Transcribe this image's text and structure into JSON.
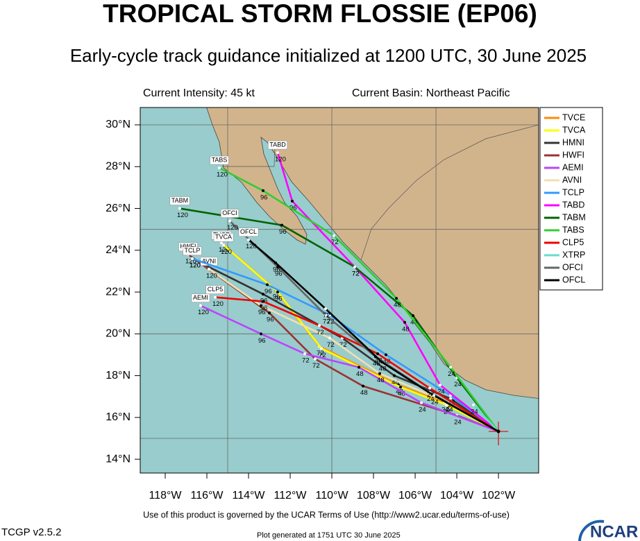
{
  "header": {
    "title": "TROPICAL STORM FLOSSIE (EP06)",
    "subtitle": "Early-cycle track guidance initialized at 1200 UTC, 30 June 2025",
    "intensity": "Current Intensity: 45 kt",
    "basin": "Current Basin: Northeast Pacific"
  },
  "chart_data": {
    "type": "track-map",
    "xlim": [
      -119.2,
      -100.07
    ],
    "ylim": [
      13.34,
      30.83
    ],
    "xticks": [
      {
        "value": -118,
        "label": "118°W"
      },
      {
        "value": -116,
        "label": "116°W"
      },
      {
        "value": -114,
        "label": "114°W"
      },
      {
        "value": -112,
        "label": "112°W"
      },
      {
        "value": -110,
        "label": "110°W"
      },
      {
        "value": -108,
        "label": "108°W"
      },
      {
        "value": -106,
        "label": "106°W"
      },
      {
        "value": -104,
        "label": "104°W"
      },
      {
        "value": -102,
        "label": "102°W"
      }
    ],
    "yticks": [
      {
        "value": 14,
        "label": "14°N"
      },
      {
        "value": 16,
        "label": "16°N"
      },
      {
        "value": 18,
        "label": "18°N"
      },
      {
        "value": 20,
        "label": "20°N"
      },
      {
        "value": 22,
        "label": "22°N"
      },
      {
        "value": 24,
        "label": "24°N"
      },
      {
        "value": 26,
        "label": "26°N"
      },
      {
        "value": 28,
        "label": "28°N"
      },
      {
        "value": 30,
        "label": "30°N"
      }
    ],
    "grid_lon": [
      -115,
      -110,
      -105
    ],
    "grid_lat": [
      15,
      20,
      25,
      30
    ],
    "start": [
      -102.0,
      15.33
    ],
    "hours": [
      "24",
      "48",
      "72",
      "96",
      "120"
    ],
    "tracks": [
      {
        "name": "TVCE",
        "color": "#ff8c00",
        "lon": [
          -102.0,
          -104.6,
          -106.8,
          -110.6,
          -112.7,
          -115.3
        ],
        "lat": [
          15.33,
          16.7,
          17.55,
          19.4,
          22.1,
          24.35
        ]
      },
      {
        "name": "TVCA",
        "color": "#ffff00",
        "lon": [
          -102.0,
          -104.5,
          -106.7,
          -110.5,
          -112.6,
          -115.2
        ],
        "lat": [
          15.33,
          16.6,
          17.45,
          19.3,
          22.0,
          24.25
        ]
      },
      {
        "name": "HMNI",
        "color": "#333333",
        "lon": [
          -102.0,
          -104.3,
          -107.0,
          -109.5,
          -113.3,
          -116.7
        ],
        "lat": [
          15.33,
          16.9,
          18.0,
          19.8,
          21.9,
          23.6
        ]
      },
      {
        "name": "HWFI",
        "color": "#993333",
        "lon": [
          -102.0,
          -104.0,
          -108.5,
          -110.8,
          -113.0,
          -116.9
        ],
        "lat": [
          15.33,
          16.1,
          17.5,
          18.8,
          21.0,
          23.8
        ]
      },
      {
        "name": "AEMI",
        "color": "#bb44ff",
        "lon": [
          -102.0,
          -105.7,
          -108.7,
          -111.3,
          -113.4,
          -116.3
        ],
        "lat": [
          15.33,
          16.7,
          18.4,
          19.05,
          20.0,
          21.35
        ]
      },
      {
        "name": "AVNI",
        "color": "#f0e0b0",
        "lon": [
          -102.0,
          -104.4,
          -107.7,
          -110.1,
          -113.4,
          -115.9
        ],
        "lat": [
          15.33,
          16.7,
          18.1,
          19.8,
          21.35,
          23.1
        ]
      },
      {
        "name": "TCLP",
        "color": "#3399ff",
        "lon": [
          -102.0,
          -104.3,
          -107.4,
          -110.1,
          -113.1,
          -116.7
        ],
        "lat": [
          15.33,
          17.05,
          19.0,
          20.9,
          22.35,
          23.6
        ]
      },
      {
        "name": "TABD",
        "color": "#ff00ff",
        "lon": [
          -102.0,
          -104.8,
          -106.5,
          -108.9,
          -111.9,
          -112.6
        ],
        "lat": [
          15.33,
          17.55,
          20.55,
          23.2,
          26.35,
          28.67
        ]
      },
      {
        "name": "TABM",
        "color": "#006400",
        "lon": [
          -102.0,
          -104.0,
          -106.1,
          -108.9,
          -112.4,
          -117.3
        ],
        "lat": [
          15.33,
          17.9,
          20.87,
          23.2,
          25.2,
          26.0
        ]
      },
      {
        "name": "TABS",
        "color": "#33cc33",
        "lon": [
          -102.0,
          -104.3,
          -106.9,
          -109.9,
          -113.3,
          -115.4
        ],
        "lat": [
          15.33,
          18.4,
          21.7,
          24.7,
          26.85,
          27.94
        ]
      },
      {
        "name": "CLP5",
        "color": "#ee0000",
        "lon": [
          -102.0,
          -105.3,
          -107.8,
          -110.6,
          -113.3,
          -115.6
        ],
        "lat": [
          15.33,
          17.4,
          19.05,
          20.4,
          21.55,
          21.75
        ]
      },
      {
        "name": "XTRP",
        "color": "#66ddcc",
        "lon": [
          -102.0,
          -103.2
        ],
        "lat": [
          15.33,
          16.6
        ]
      },
      {
        "name": "OFCI",
        "color": "#666666",
        "lon": [
          -102.0,
          -105.3,
          -107.9,
          -110.3,
          -112.6,
          -114.9
        ],
        "lat": [
          15.33,
          17.2,
          18.9,
          20.9,
          23.2,
          25.4
        ]
      },
      {
        "name": "OFCL",
        "color": "#000000",
        "lon": [
          -102.0,
          -105.1,
          -107.6,
          -110.3,
          -112.7,
          -114.0
        ],
        "lat": [
          15.33,
          17.05,
          18.65,
          21.2,
          23.4,
          24.5
        ]
      }
    ]
  },
  "footer": {
    "terms": "Use of this product is governed by the UCAR Terms of Use (http://www2.ucar.edu/terms-of-use)",
    "version": "TCGP v2.5.2",
    "generated": "Plot generated at 1751 UTC   30 June 2025",
    "logo": "NCAR"
  }
}
